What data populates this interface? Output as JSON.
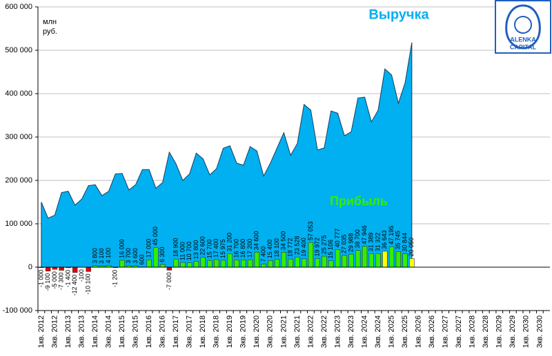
{
  "logo": {
    "line1": "ALENKA",
    "line2": "CAPITAL"
  },
  "chart_data": {
    "type": "combo",
    "ylabel": [
      "млн",
      "руб."
    ],
    "categories": [
      "1кв. 2012",
      null,
      "3кв. 2012",
      null,
      "1кв. 2013",
      null,
      "3кв. 2013",
      null,
      "1кв. 2014",
      null,
      "3кв. 2014",
      null,
      "1кв. 2015",
      null,
      "3кв. 2015",
      null,
      "1кв. 2016",
      null,
      "3кв. 2016",
      null,
      "1кв. 2017",
      null,
      "3кв. 2017",
      null,
      "1кв. 2018",
      null,
      "3кв. 2018",
      null,
      "1кв. 2019",
      null,
      "3кв. 2019",
      null,
      "1кв. 2020",
      null,
      "3кв. 2020",
      null,
      "1кв. 2021",
      null,
      "3кв. 2021",
      null,
      "1кв. 2022",
      null,
      "3кв. 2022",
      null,
      "1кв. 2023",
      null,
      "3кв. 2023",
      null,
      "1кв. 2024",
      null,
      "3кв. 2024",
      null,
      "1кв. 2025",
      null,
      "3кв. 2025",
      null,
      "1кв. 2026",
      null,
      "3кв. 2026",
      null,
      "1кв. 2027",
      null,
      "3кв. 2027",
      null,
      "1кв. 2028",
      null,
      "3кв. 2028",
      null,
      "1кв. 2029",
      null,
      "3кв. 2029",
      null,
      "1кв. 2030",
      null,
      "3кв. 2030",
      null
    ],
    "series": [
      {
        "name": "Выручка",
        "type": "area",
        "color": "#00b0f0",
        "values": [
          150000,
          113000,
          120000,
          172000,
          175000,
          143000,
          157000,
          188000,
          190000,
          165000,
          175000,
          215000,
          216000,
          178000,
          190000,
          225000,
          225000,
          182000,
          195000,
          265000,
          238000,
          200000,
          215000,
          263000,
          250000,
          213000,
          227000,
          274000,
          280000,
          240000,
          235000,
          278000,
          268000,
          210000,
          240000,
          275000,
          310000,
          258000,
          285000,
          375000,
          362000,
          270000,
          275000,
          360000,
          355000,
          303000,
          312000,
          390000,
          392000,
          335000,
          362000,
          457000,
          443000,
          378000,
          425000,
          518000,
          null,
          null,
          null,
          null,
          null,
          null,
          null,
          null,
          null,
          null,
          null,
          null,
          null,
          null,
          null,
          null,
          null,
          null,
          null,
          null
        ]
      },
      {
        "name": "Прибыль",
        "type": "bar",
        "color": "#33ee00",
        "values": [
          -1000,
          -9100,
          -5000,
          -7300,
          -1400,
          -12400,
          -100,
          -10100,
          3800,
          3100,
          4100,
          -1200,
          16000,
          3700,
          3600,
          600,
          17000,
          45000,
          6300,
          -7000,
          18900,
          11000,
          10700,
          13800,
          22600,
          15700,
          17400,
          15975,
          31200,
          16700,
          16800,
          17200,
          34600,
          7400,
          15400,
          18100,
          34500,
          18772,
          23528,
          19400,
          57053,
          19972,
          25275,
          15106,
          40777,
          27035,
          29988,
          38700,
          47946,
          31389,
          31322,
          36643,
          47195,
          35745,
          30844,
          20050,
          null,
          null,
          null,
          null,
          null,
          null,
          null,
          null,
          null,
          null,
          null,
          null,
          null,
          null,
          null,
          null,
          null,
          null,
          null,
          null
        ],
        "value_labels": [
          "-1 000",
          "-9 100",
          "-5 000",
          "-7 300",
          "-1 400",
          "-12 400",
          "-100",
          "-10 100",
          "3 800",
          "3 100",
          "4 100",
          "-1 200",
          "16 000",
          "3 700",
          "3 600",
          "600",
          "17 000",
          "45 000",
          "6 300",
          "-7 000",
          "18 900",
          "11 000",
          "10 700",
          "13 800",
          "22 600",
          "15 700",
          "17 400",
          "15 975",
          "31 200",
          "16 700",
          "16 800",
          "17 200",
          "34 600",
          "7 400",
          "15 400",
          "18 100",
          "34 500",
          "18 772",
          "23 528",
          "19 400",
          "57 053",
          "19 972",
          "25 275",
          "15 106",
          "40 777",
          "27 035",
          "29 988",
          "38 700",
          "47 946",
          "31 389",
          "31 322",
          "36 643",
          "47 195",
          "35 745",
          "30 844",
          "20 050",
          null,
          null,
          null,
          null,
          null,
          null,
          null,
          null,
          null,
          null,
          null,
          null,
          null,
          null,
          null,
          null,
          null,
          null,
          null,
          null
        ],
        "colors": [
          "#e00000",
          "#e00000",
          "#e00000",
          "#e00000",
          "#e00000",
          "#e00000",
          "#e00000",
          "#e00000",
          "#33ee00",
          "#33ee00",
          "#33ee00",
          "#e00000",
          "#33ee00",
          "#33ee00",
          "#33ee00",
          "#33ee00",
          "#33ee00",
          "#33ee00",
          "#33ee00",
          "#e00000",
          "#33ee00",
          "#33ee00",
          "#33ee00",
          "#33ee00",
          "#33ee00",
          "#33ee00",
          "#33ee00",
          "#33ee00",
          "#33ee00",
          "#33ee00",
          "#33ee00",
          "#33ee00",
          "#33ee00",
          "#33ee00",
          "#33ee00",
          "#33ee00",
          "#33ee00",
          "#33ee00",
          "#33ee00",
          "#33ee00",
          "#33ee00",
          "#33ee00",
          "#33ee00",
          "#33ee00",
          "#33ee00",
          "#33ee00",
          "#33ee00",
          "#33ee00",
          "#33ee00",
          "#33ee00",
          "#33ee00",
          "#ffff00",
          "#33ee00",
          "#33ee00",
          "#33ee00",
          "#ffff00",
          null,
          null,
          null,
          null,
          null,
          null,
          null,
          null,
          null,
          null,
          null,
          null,
          null,
          null,
          null,
          null,
          null,
          null,
          null,
          null
        ]
      }
    ],
    "ylim": [
      -100000,
      600000
    ],
    "yticks": [
      {
        "value": -100000,
        "label": "-100 000"
      },
      0,
      {
        "value": 100000,
        "label": "100 000"
      },
      {
        "value": 200000,
        "label": "200 000"
      },
      {
        "value": 300000,
        "label": "300 000"
      },
      {
        "value": 400000,
        "label": "400 000"
      },
      {
        "value": 500000,
        "label": "500 000"
      },
      {
        "value": 600000,
        "label": "600 000"
      }
    ],
    "grid": true
  }
}
